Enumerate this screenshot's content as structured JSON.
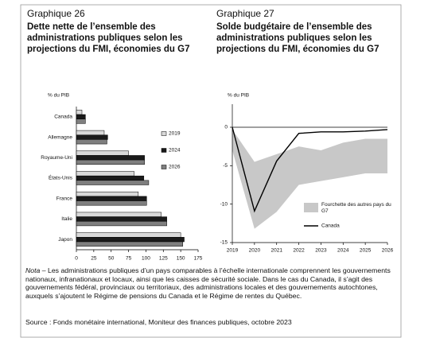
{
  "chart_data": [
    {
      "type": "bar",
      "orientation": "horizontal",
      "label": "Graphique 26",
      "title": "Dette nette de l’ensemble des administrations publiques selon les projections du FMI, économies du G7",
      "axis_label": "% du PIB",
      "categories": [
        "Canada",
        "Allemagne",
        "Royaume-Uni",
        "États-Unis",
        "France",
        "Italie",
        "Japon"
      ],
      "series": [
        {
          "name": "2019",
          "color": "#d9d9d9",
          "values": [
            8,
            40,
            75,
            83,
            89,
            122,
            150
          ]
        },
        {
          "name": "2024",
          "color": "#1a1a1a",
          "values": [
            13,
            45,
            98,
            97,
            101,
            130,
            155
          ]
        },
        {
          "name": "2026",
          "color": "#7f7f7f",
          "values": [
            13,
            44,
            98,
            104,
            101,
            130,
            153
          ]
        }
      ],
      "xlim": [
        0,
        175
      ],
      "xticks": [
        0,
        25,
        50,
        75,
        100,
        125,
        150,
        175
      ],
      "legend": "right"
    },
    {
      "type": "line",
      "label": "Graphique 27",
      "title": "Solde budgétaire de l’ensemble des administrations publiques selon les projections du FMI, économies du G7",
      "axis_label": "% du PIB",
      "x": [
        2019,
        2020,
        2021,
        2022,
        2023,
        2024,
        2025,
        2026
      ],
      "series": [
        {
          "name": "Fourchette des autres pays du G7",
          "kind": "band",
          "color": "#c8c8c8",
          "upper": [
            -0.3,
            -4.5,
            -3.5,
            -2.5,
            -3,
            -2,
            -1.5,
            -1.5
          ],
          "lower": [
            -3,
            -13.2,
            -11,
            -7.5,
            -7,
            -6.5,
            -6,
            -6
          ]
        },
        {
          "name": "Canada",
          "kind": "line",
          "color": "#000000",
          "values": [
            0,
            -10.9,
            -4.4,
            -0.8,
            -0.6,
            -0.6,
            -0.5,
            -0.3
          ]
        }
      ],
      "xlim": [
        2019,
        2026
      ],
      "xticks": [
        2019,
        2020,
        2021,
        2022,
        2023,
        2024,
        2025,
        2026
      ],
      "ylim": [
        -15,
        3
      ],
      "yticks": [
        0,
        -5,
        -10,
        -15
      ],
      "legend": "right"
    }
  ],
  "note_label": "Nota",
  "note": " – Les administrations publiques d’un pays comparables à l’échelle internationale comprennent les gouvernements nationaux, infranationaux et locaux, ainsi que les caisses de sécurité sociale. Dans le cas du Canada, il s’agit des gouvernements fédéral, provinciaux ou territoriaux, des administrations locales et des gouvernements autochtones, auxquels s’ajoutent le Régime de pensions du Canada et le Régime de rentes du Québec.",
  "source": "Source : Fonds monétaire international, Moniteur des finances publiques, octobre 2023"
}
